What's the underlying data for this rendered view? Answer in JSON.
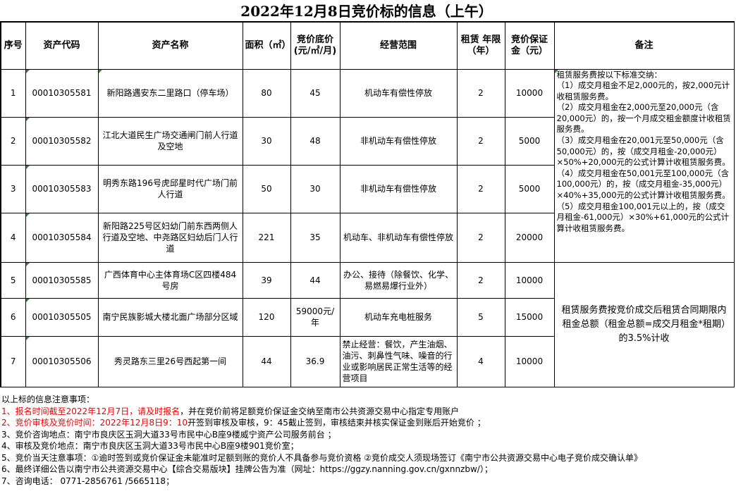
{
  "title": "2022年12月8日竞价标的信息（上午）",
  "headers": [
    "序号",
    "资产代码",
    "资产名称",
    "面积（㎡）",
    "竞价底价(元/㎡/月)",
    "经营范围",
    "租赁 年限（年）",
    "竞价保证金（元）",
    "备注"
  ],
  "rows": [
    {
      "no": "1",
      "code": "00010305581",
      "name": "新阳路遇安东二里路口（停车场）",
      "area": "80",
      "price": "45",
      "scope": "机动车有偿性停放",
      "years": "2",
      "deposit": "10000"
    },
    {
      "no": "2",
      "code": "00010305582",
      "name": "江北大道民生广场交通闸门前人行道及空地",
      "area": "30",
      "price": "48",
      "scope": "非机动车有偿性停放",
      "years": "2",
      "deposit": "5000"
    },
    {
      "no": "3",
      "code": "00010305583",
      "name": "明秀东路196号虎邱星时代广场门前人行道",
      "area": "50",
      "price": "30",
      "scope": "非机动车有偿性停放",
      "years": "2",
      "deposit": "5000"
    },
    {
      "no": "4",
      "code": "00010305584",
      "name": "新阳路225号区妇幼门前东西两侧人行道及空地、中尧路区妇幼后门人行道",
      "area": "221",
      "price": "35",
      "scope": "机动车、非机动车有偿性停放",
      "years": "2",
      "deposit": "20000"
    },
    {
      "no": "5",
      "code": "00010305585",
      "name": "广西体育中心主体育场C区四楼484号房",
      "area": "39",
      "price": "44",
      "scope": "办公、接待（除餐饮、化学、易燃易爆行业外）",
      "years": "2",
      "deposit": "10000"
    },
    {
      "no": "6",
      "code": "00010305505",
      "name": "南宁民族影城大楼北面广场部分区域",
      "area": "120",
      "price": "59000元/年",
      "scope": "机动车充电桩服务",
      "years": "5",
      "deposit": "15000"
    },
    {
      "no": "7",
      "code": "00010305506",
      "name": "秀灵路东三里26号西起第一间",
      "area": "44",
      "price": "36.9",
      "scope": "禁止经营：餐饮，产生油烟、油污、刺鼻性气味、噪音的行业或影响居民正常生活等的经营项目",
      "years": "4",
      "deposit": "10000"
    }
  ],
  "remark1": "租赁服务费按以下标准交纳：\n（1）成交月租金不足2,000元的，按2,000元计收租赁服务费。\n（2）成交月租金在2,000元至20,000元（含20,000元）的，按一个月成交租金额度计收租赁服务费。\n（3）成交月租金在20,001元至50,000元（含50,000元）的，按（成交月租金-20,000元）×50%+20,000元的公式计算计收租赁服务费。\n（4）成交月租金在50,001元至100,000元（含100,000元）的，按（成交月租金-35,000元）×40%+35,000元的公式计算计收租赁服务费。\n（5）成交月租金100,001元以上的，按（成交月租金-61,000元）×30%+61,000元的公式计算计收租赁服务费。",
  "remark2": "租赁服务费按竞价成交后租赁合同期限内租金总额（租金总额=成交月租金*租期）的3.5%计收",
  "notes": {
    "heading": "以上标的信息注意事项：",
    "n1_red": "1、报名时间截至2022年12月7日，请及时报名",
    "n1_rest": "，并在竞价前将足额竞价保证金交纳至南市公共资源交易中心指定专用账户",
    "n2_red": "2、竞价审核及竞价时间：2022年12月8日9：10",
    "n2_rest": "开签到审核及审核，9：45截止签到，审核结束并核实保证金到账后开始竞价 ；",
    "n3": "3、竞价咨询地点：南宁市良庆区玉洞大道33号市民中心B座9楼威宁资产公司服务前台 ；",
    "n4": "4、审核及竞价地点：南宁市良庆区玉洞大道33号市民中心B座9楼901竞价室；",
    "n5": "5、竞价当天注意事项：①逾时签到或竞价保证金未能准时足额到账的竞价人不具备参与竞价资格 ②竞价成交人须现场签订《南宁市公共资源交易中心电子竞价成交确认单》",
    "n6": "6、最终详细公告以南宁市公共资源交易中心【综合交易版块】挂牌公告为准（网址：https://ggzy.nanning.gov.cn/gxnnzbw/）；",
    "n7": "7、咨询电话： 0771-2856761 /5665118；"
  }
}
